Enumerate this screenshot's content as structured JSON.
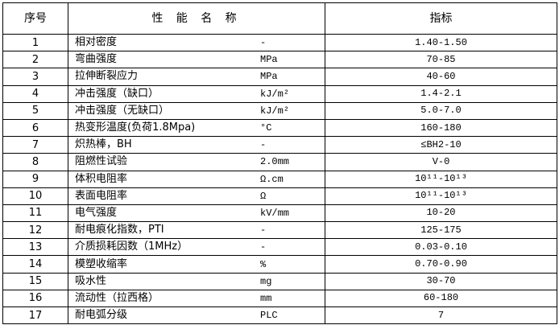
{
  "header": {
    "no": "序号",
    "property": "性 能 名 称",
    "spec": "指标"
  },
  "rows": [
    {
      "no": "1",
      "name": "相对密度",
      "unit": "-",
      "value": "1.40-1.50"
    },
    {
      "no": "2",
      "name": "弯曲强度",
      "unit": "MPa",
      "value": "70-85"
    },
    {
      "no": "3",
      "name": "拉伸断裂应力",
      "unit": "MPa",
      "value": "40-60"
    },
    {
      "no": "4",
      "name": "冲击强度（缺口）",
      "unit": "kJ/m²",
      "value": "1.4-2.1"
    },
    {
      "no": "5",
      "name": "冲击强度（无缺口）",
      "unit": "kJ/m²",
      "value": "5.0-7.0"
    },
    {
      "no": "6",
      "name": "热变形温度(负荷1.8Mpa)",
      "unit": "°C",
      "value": "160-180"
    },
    {
      "no": "7",
      "name": "炽热棒，BH",
      "unit": "-",
      "value": "≤BH2-10"
    },
    {
      "no": "8",
      "name": "阻燃性试验",
      "unit": "2.0mm",
      "value": "V-0"
    },
    {
      "no": "9",
      "name": "体积电阻率",
      "unit": "Ω.cm",
      "value": "10¹¹-10¹³"
    },
    {
      "no": "10",
      "name": "表面电阻率",
      "unit": "Ω",
      "value": "10¹¹-10¹³"
    },
    {
      "no": "11",
      "name": "电气强度",
      "unit": "kV/mm",
      "value": "10-20"
    },
    {
      "no": "12",
      "name": "耐电痕化指数，PTI",
      "unit": "-",
      "value": "125-175"
    },
    {
      "no": "13",
      "name": "介质损耗因数（1MHz）",
      "unit": "-",
      "value": "0.03-0.10"
    },
    {
      "no": "14",
      "name": "模塑收缩率",
      "unit": "%",
      "value": "0.70-0.90"
    },
    {
      "no": "15",
      "name": "吸水性",
      "unit": "mg",
      "value": "30-70"
    },
    {
      "no": "16",
      "name": "流动性（拉西格）",
      "unit": "mm",
      "value": "60-180"
    },
    {
      "no": "17",
      "name": "耐电弧分级",
      "unit": "PLC",
      "value": "7"
    }
  ]
}
